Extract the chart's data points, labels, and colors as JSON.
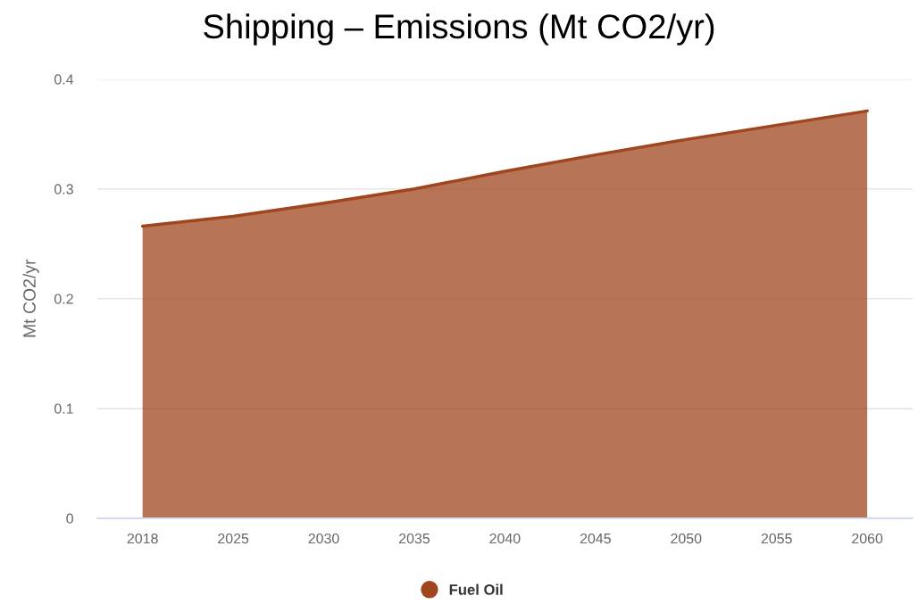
{
  "chart_data": {
    "type": "area",
    "title": "Shipping – Emissions (Mt CO2/yr)",
    "ylabel": "Mt CO2/yr",
    "categories": [
      "2018",
      "2025",
      "2030",
      "2035",
      "2040",
      "2045",
      "2050",
      "2055",
      "2060"
    ],
    "series": [
      {
        "name": "Fuel Oil",
        "color": "#a0461e",
        "values": [
          0.266,
          0.275,
          0.287,
          0.3,
          0.316,
          0.331,
          0.345,
          0.358,
          0.371
        ]
      }
    ],
    "ylim": [
      0,
      0.4
    ],
    "yticks": [
      0,
      0.1,
      0.2,
      0.3,
      0.4
    ],
    "grid": "y",
    "legend": "bottom"
  }
}
